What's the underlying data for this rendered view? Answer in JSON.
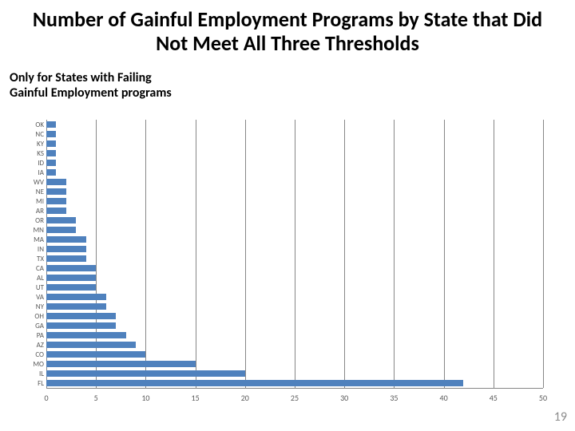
{
  "title": "Number of Gainful Employment Programs by State that Did Not Meet All Three Thresholds",
  "title_fontsize": 26,
  "title_color": "#000000",
  "subtitle_line1": "Only for States with Failing",
  "subtitle_line2": "Gainful Employment programs",
  "subtitle_fontsize": 16,
  "page_number": "19",
  "chart": {
    "type": "horizontal-bar",
    "xlim": [
      0,
      50
    ],
    "xtick_step": 5,
    "xticks": [
      0,
      5,
      10,
      15,
      20,
      25,
      30,
      35,
      40,
      45,
      50
    ],
    "bar_color": "#4f81bd",
    "grid_color": "#878787",
    "axis_label_color": "#595959",
    "background_color": "#ffffff",
    "ylabel_fontsize": 9,
    "xlabel_fontsize": 10,
    "categories": [
      "OK",
      "NC",
      "KY",
      "KS",
      "ID",
      "IA",
      "WV",
      "NE",
      "MI",
      "AR",
      "OR",
      "MN",
      "MA",
      "IN",
      "TX",
      "CA",
      "AL",
      "UT",
      "VA",
      "NY",
      "OH",
      "GA",
      "PA",
      "AZ",
      "CO",
      "MO",
      "IL",
      "FL"
    ],
    "values": [
      1,
      1,
      1,
      1,
      1,
      1,
      2,
      2,
      2,
      2,
      3,
      3,
      4,
      4,
      4,
      5,
      5,
      5,
      6,
      6,
      7,
      7,
      8,
      9,
      10,
      15,
      20,
      42
    ]
  }
}
